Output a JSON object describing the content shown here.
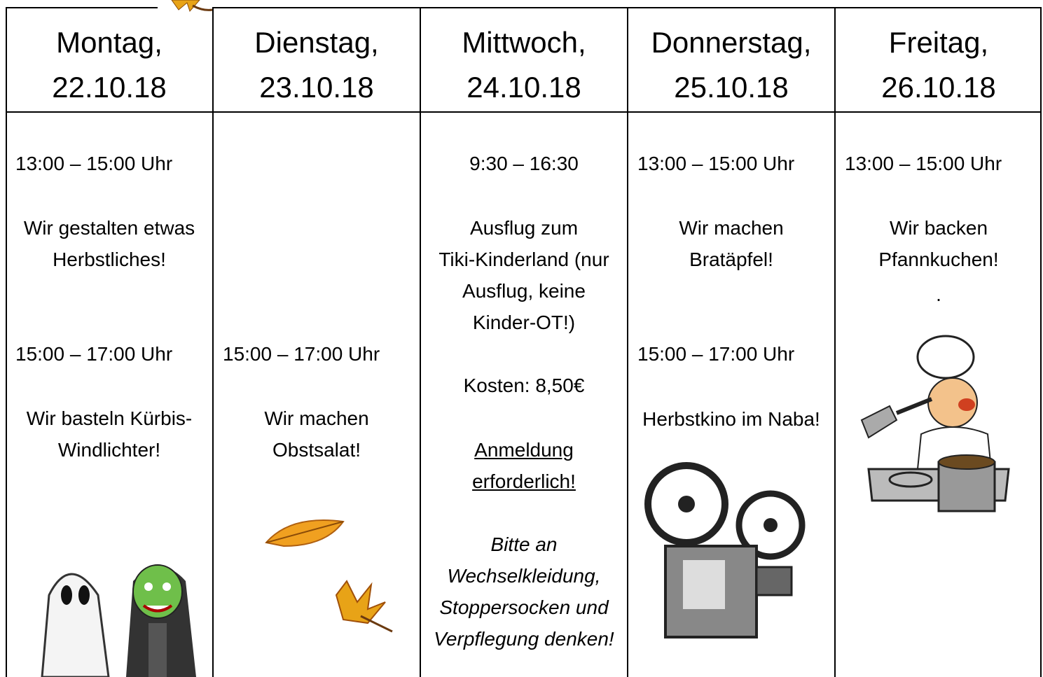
{
  "table": {
    "columns": [
      {
        "day": "Montag,",
        "date": "22.10.18",
        "items": [
          "13:00 – 15:00 Uhr",
          "Wir gestalten etwas\nHerbstliches!",
          "15:00 – 17:00 Uhr",
          "Wir basteln Kürbis-\nWindlichter!"
        ]
      },
      {
        "day": "Dienstag,",
        "date": "23.10.18",
        "items": [
          "15:00 – 17:00 Uhr",
          "Wir machen\nObstsalat!"
        ]
      },
      {
        "day": "Mittwoch,",
        "date": "24.10.18",
        "items": [
          "9:30 – 16:30",
          "Ausflug zum\nTiki-Kinderland (nur\nAusflug, keine\nKinder-OT!)",
          "Kosten: 8,50€",
          "Anmeldung\nerforderlich!",
          "Bitte an\nWechselkleidung,\nStoppersocken und\nVerpflegung denken!"
        ]
      },
      {
        "day": "Donnerstag,",
        "date": "25.10.18",
        "items": [
          "13:00 – 15:00 Uhr",
          "Wir machen\nBratäpfel!",
          "15:00 – 17:00 Uhr",
          "Herbstkino im Naba!"
        ]
      },
      {
        "day": "Freitag,",
        "date": "26.10.18",
        "items": [
          "13:00 – 15:00 Uhr",
          "Wir backen\nPfannkuchen!",
          "."
        ]
      }
    ]
  }
}
